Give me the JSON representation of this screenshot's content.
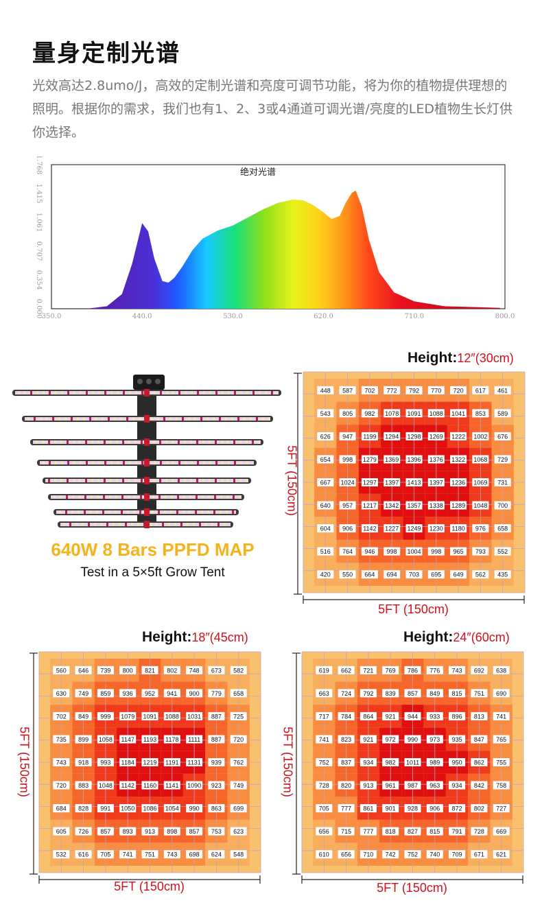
{
  "header": {
    "title": "量身定制光谱",
    "description": "光效高达2.8umo/J，高效的定制光谱和亮度可调节功能，将为你的植物提供理想的照明。根据你的需求，我们也有1、2、3或4通道可调光谱/亮度的LED植物生长灯供你选择。"
  },
  "spectrum_chart": {
    "type": "area",
    "title": "绝对光谱",
    "x_ticks": [
      "350.0",
      "440.0",
      "530.0",
      "620.0",
      "710.0",
      "800.0"
    ],
    "y_ticks": [
      "0.000",
      "0.354",
      "0.707",
      "1.061",
      "1.415",
      "1.768"
    ],
    "xlim": [
      350,
      800
    ],
    "ylim": [
      0,
      1.768
    ],
    "x": [
      385,
      405,
      420,
      430,
      440,
      446,
      452,
      460,
      466,
      472,
      480,
      490,
      500,
      515,
      530,
      545,
      560,
      575,
      590,
      600,
      610,
      620,
      628,
      636,
      642,
      648,
      652,
      658,
      665,
      675,
      690,
      710,
      740,
      770,
      795
    ],
    "y": [
      0.0,
      0.03,
      0.18,
      0.55,
      1.05,
      0.95,
      0.62,
      0.34,
      0.32,
      0.38,
      0.52,
      0.72,
      0.86,
      0.96,
      1.02,
      1.12,
      1.22,
      1.3,
      1.34,
      1.33,
      1.27,
      1.18,
      1.1,
      1.14,
      1.3,
      1.42,
      1.45,
      1.25,
      0.85,
      0.45,
      0.2,
      0.09,
      0.03,
      0.02,
      0.01
    ]
  },
  "product": {
    "caption": "640W 8 Bars PPFD MAP",
    "subcaption": "Test in a 5×5ft Grow Tent"
  },
  "maps": [
    {
      "height_key": "Height:",
      "height_value": "12″(30cm)",
      "side_label": "5FT (150cm)",
      "bottom_label": "5FT (150cm)",
      "values": [
        [
          448,
          587,
          702,
          772,
          792,
          770,
          720,
          617,
          461
        ],
        [
          543,
          805,
          982,
          1078,
          1091,
          1088,
          1041,
          853,
          589
        ],
        [
          626,
          947,
          1199,
          1294,
          1298,
          1269,
          1222,
          1002,
          676
        ],
        [
          654,
          998,
          1279,
          1369,
          1396,
          1376,
          1322,
          1068,
          729
        ],
        [
          667,
          1024,
          1297,
          1397,
          1413,
          1397,
          1236,
          1069,
          731
        ],
        [
          640,
          957,
          1217,
          1342,
          1357,
          1338,
          1289,
          1048,
          700
        ],
        [
          604,
          906,
          1142,
          1227,
          1249,
          1230,
          1180,
          976,
          658
        ],
        [
          516,
          764,
          946,
          998,
          1004,
          998,
          965,
          793,
          552
        ],
        [
          420,
          550,
          664,
          694,
          703,
          695,
          649,
          562,
          435
        ]
      ]
    },
    {
      "height_key": "Height:",
      "height_value": "18″(45cm)",
      "side_label": "5FT (150cm)",
      "bottom_label": "5FT (150cm)",
      "values": [
        [
          560,
          646,
          739,
          800,
          821,
          802,
          748,
          673,
          582
        ],
        [
          630,
          749,
          859,
          936,
          952,
          941,
          900,
          779,
          658
        ],
        [
          702,
          849,
          999,
          1079,
          1091,
          1088,
          1031,
          887,
          725
        ],
        [
          735,
          899,
          1058,
          1147,
          1193,
          1178,
          1111,
          887,
          720
        ],
        [
          743,
          918,
          993,
          1184,
          1219,
          1191,
          1131,
          939,
          762
        ],
        [
          720,
          883,
          1048,
          1142,
          1160,
          1141,
          1090,
          923,
          749
        ],
        [
          684,
          828,
          991,
          1050,
          1086,
          1054,
          990,
          863,
          699
        ],
        [
          605,
          726,
          857,
          893,
          913,
          898,
          857,
          753,
          623
        ],
        [
          532,
          616,
          705,
          741,
          751,
          743,
          698,
          624,
          548
        ]
      ]
    },
    {
      "height_key": "Height:",
      "height_value": "24″(60cm)",
      "side_label": "5FT (150cm)",
      "bottom_label": "5FT (150cm)",
      "values": [
        [
          619,
          662,
          721,
          769,
          786,
          776,
          743,
          692,
          638
        ],
        [
          663,
          724,
          792,
          839,
          857,
          849,
          815,
          751,
          690
        ],
        [
          717,
          784,
          864,
          921,
          944,
          933,
          896,
          813,
          741
        ],
        [
          741,
          823,
          921,
          972,
          990,
          973,
          935,
          847,
          765
        ],
        [
          752,
          837,
          934,
          982,
          1011,
          989,
          950,
          862,
          755
        ],
        [
          728,
          820,
          913,
          961,
          987,
          963,
          934,
          842,
          758
        ],
        [
          705,
          777,
          861,
          901,
          928,
          906,
          872,
          802,
          727
        ],
        [
          656,
          715,
          777,
          818,
          827,
          815,
          791,
          728,
          669
        ],
        [
          610,
          656,
          710,
          742,
          752,
          740,
          709,
          671,
          621
        ]
      ]
    }
  ]
}
